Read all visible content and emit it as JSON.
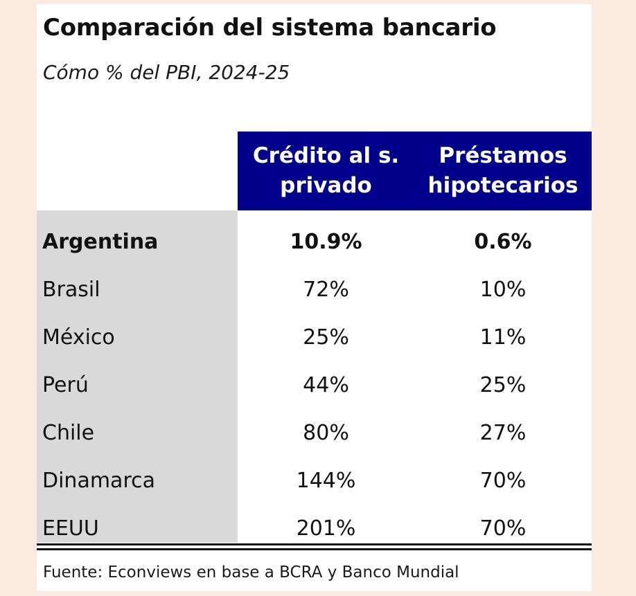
{
  "title": "Comparación del sistema bancario",
  "subtitle": "Cómo % del PBI, 2024-25",
  "source": "Fuente: Econviews en base a BCRA y Banco Mundial",
  "colors": {
    "header_bg": "#00008b",
    "header_text": "#ffffff",
    "name_column_bg": "#d9d9d9",
    "page_bg": "#faeadf"
  },
  "chart_data": {
    "type": "table",
    "title": "Comparación del sistema bancario",
    "subtitle": "Cómo % del PBI, 2024-25",
    "columns": [
      "Crédito al s. privado",
      "Préstamos hipotecarios"
    ],
    "column_lines": [
      [
        "Crédito al s.",
        "privado"
      ],
      [
        "Préstamos",
        "hipotecarios"
      ]
    ],
    "rows": [
      {
        "name": "Argentina",
        "values": [
          "10.9%",
          "0.6%"
        ],
        "highlight": true
      },
      {
        "name": "Brasil",
        "values": [
          "72%",
          "10%"
        ]
      },
      {
        "name": "México",
        "values": [
          "25%",
          "11%"
        ]
      },
      {
        "name": "Perú",
        "values": [
          "44%",
          "25%"
        ]
      },
      {
        "name": "Chile",
        "values": [
          "80%",
          "27%"
        ]
      },
      {
        "name": "Dinamarca",
        "values": [
          "144%",
          "70%"
        ]
      },
      {
        "name": "EEUU",
        "values": [
          "201%",
          "70%"
        ]
      }
    ],
    "source": "Fuente: Econviews en base a BCRA y Banco Mundial"
  }
}
